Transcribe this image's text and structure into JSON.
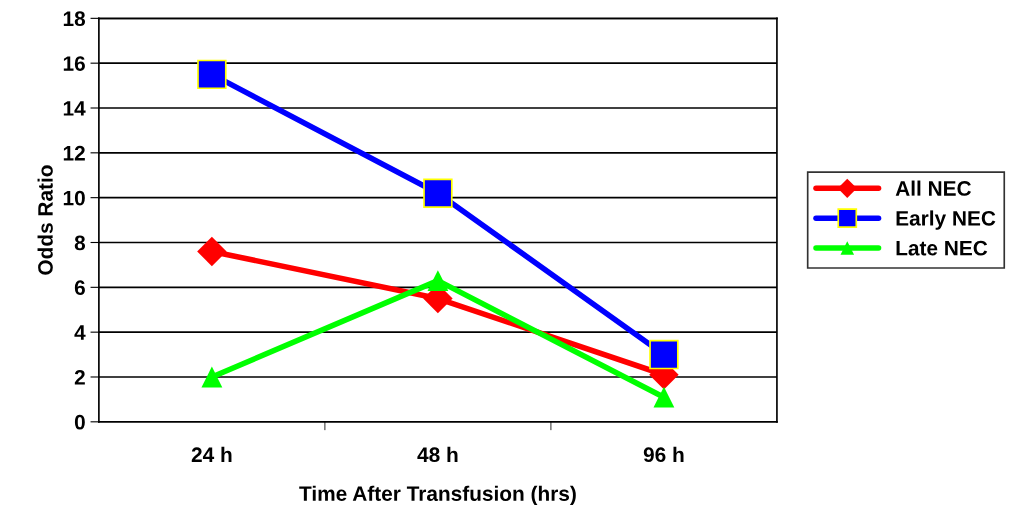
{
  "chart_data": {
    "type": "line",
    "xlabel": "Time After Transfusion (hrs)",
    "ylabel": "Odds Ratio",
    "categories": [
      "24 h",
      "48 h",
      "96 h"
    ],
    "series": [
      {
        "name": "All NEC",
        "color": "#ff0000",
        "marker": "diamond",
        "values": [
          7.6,
          5.5,
          2.1
        ]
      },
      {
        "name": "Early NEC",
        "color": "#0000ff",
        "marker": "square",
        "values": [
          15.5,
          10.2,
          3.0
        ]
      },
      {
        "name": "Late NEC",
        "color": "#00ff00",
        "marker": "triangle",
        "values": [
          2.0,
          6.3,
          1.1
        ]
      }
    ],
    "ylim": [
      0,
      18
    ],
    "yticks": [
      0,
      2,
      4,
      6,
      8,
      10,
      12,
      14,
      16,
      18
    ],
    "grid": "y",
    "legend": "right",
    "line_style": "solid"
  }
}
